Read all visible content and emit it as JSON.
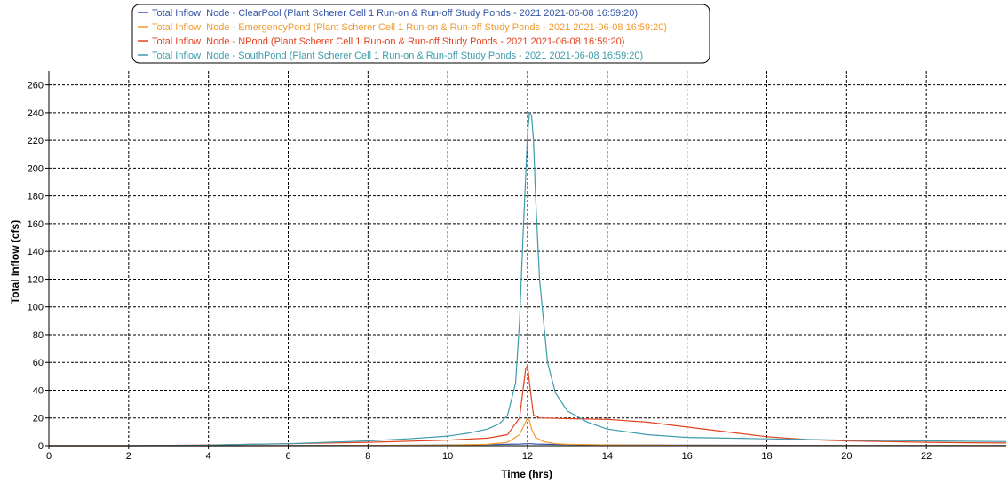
{
  "chart_data": {
    "type": "line",
    "title": "",
    "xlabel": "Time (hrs)",
    "ylabel": "Total Inflow (cfs)",
    "xlim": [
      0,
      24
    ],
    "ylim": [
      0,
      270
    ],
    "x_ticks": [
      0,
      2,
      4,
      6,
      8,
      10,
      12,
      14,
      16,
      18,
      20,
      22
    ],
    "y_ticks": [
      0,
      20,
      40,
      60,
      80,
      100,
      120,
      140,
      160,
      180,
      200,
      220,
      240,
      260
    ],
    "grid": true,
    "legend_position": "top-left",
    "series": [
      {
        "name": "Total Inflow: Node - ClearPool (Plant Scherer Cell 1 Run-on & Run-off Study Ponds - 2021 2021-06-08 16:59:20)",
        "color": "#3355a6",
        "x": [
          0,
          4,
          8,
          10,
          11,
          11.5,
          11.8,
          12,
          12.1,
          12.2,
          12.5,
          13,
          14,
          16,
          18,
          20,
          24
        ],
        "y": [
          0,
          0,
          0.2,
          0.5,
          0.8,
          1,
          1.2,
          1.5,
          1.5,
          1.2,
          1,
          0.8,
          0.6,
          0.4,
          0.3,
          0.2,
          0.1
        ]
      },
      {
        "name": "Total Inflow: Node - EmergencyPond (Plant Scherer Cell 1 Run-on & Run-off Study Ponds - 2021 2021-06-08 16:59:20)",
        "color": "#f29a2e",
        "x": [
          0,
          6,
          10,
          11,
          11.5,
          11.8,
          11.9,
          12,
          12.05,
          12.1,
          12.2,
          12.4,
          12.7,
          13,
          14,
          16,
          24
        ],
        "y": [
          0,
          0,
          0.3,
          1,
          2.5,
          8,
          14,
          20,
          18,
          12,
          6,
          3,
          1.5,
          1,
          0.5,
          0.2,
          0
        ]
      },
      {
        "name": "Total Inflow: Node - NPond (Plant Scherer Cell 1 Run-on & Run-off Study Ponds - 2021 2021-06-08 16:59:20)",
        "color": "#e2421e",
        "x": [
          0,
          2,
          4,
          6,
          8,
          10,
          11,
          11.5,
          11.8,
          11.95,
          12,
          12.05,
          12.15,
          12.3,
          13,
          14,
          15,
          16,
          17,
          18,
          19,
          20,
          21,
          22,
          23,
          24
        ],
        "y": [
          0,
          0,
          0.5,
          1.5,
          2.5,
          4,
          5.5,
          8,
          20,
          55,
          58,
          45,
          22,
          20,
          19.5,
          19,
          17,
          13.5,
          10,
          6.5,
          4.5,
          3.5,
          3,
          2.5,
          2.2,
          2
        ]
      },
      {
        "name": "Total Inflow: Node - SouthPond (Plant Scherer Cell 1 Run-on & Run-off Study Ponds - 2021 2021-06-08 16:59:20)",
        "color": "#3e9bab",
        "x": [
          0,
          2,
          4,
          5,
          6,
          7,
          8,
          9,
          10,
          10.5,
          11,
          11.3,
          11.5,
          11.7,
          11.8,
          11.9,
          12,
          12.05,
          12.1,
          12.15,
          12.2,
          12.3,
          12.5,
          12.7,
          13,
          13.5,
          14,
          15,
          16,
          17,
          18,
          20,
          22,
          24
        ],
        "y": [
          0,
          0,
          0.3,
          1,
          1.5,
          2.5,
          3.5,
          5,
          7,
          9,
          12,
          16,
          22,
          45,
          90,
          160,
          225,
          240,
          238,
          220,
          180,
          120,
          60,
          38,
          25,
          17,
          12,
          8,
          6,
          5.5,
          5,
          4,
          3.5,
          3
        ]
      }
    ]
  }
}
